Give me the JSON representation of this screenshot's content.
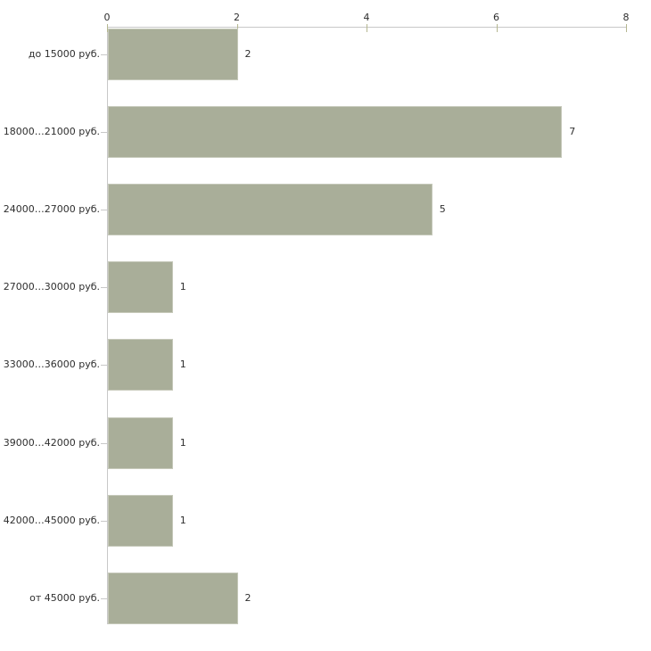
{
  "chart_data": {
    "type": "bar",
    "orientation": "horizontal",
    "categories": [
      "до 15000 руб.",
      "18000…21000 руб.",
      "24000…27000 руб.",
      "27000…30000 руб.",
      "33000…36000 руб.",
      "39000…42000 руб.",
      "42000…45000 руб.",
      "от 45000 руб."
    ],
    "values": [
      2,
      7,
      5,
      1,
      1,
      1,
      1,
      2
    ],
    "value_labels": [
      "2",
      "7",
      "5",
      "1",
      "1",
      "1",
      "1",
      "2"
    ],
    "x_ticks": [
      0,
      2,
      4,
      6,
      8
    ],
    "x_tick_labels": [
      "0",
      "2",
      "4",
      "6",
      "8"
    ],
    "xlim": [
      0,
      8
    ],
    "grid": false,
    "legend": "none",
    "axis_position": "top",
    "colors": {
      "bar_fill": "#a9ae99",
      "bar_edge": "#c6c9ba",
      "axis_line": "#c8c8c8",
      "tick_mark": "#b5b790",
      "text": "#2e2e2e"
    }
  }
}
